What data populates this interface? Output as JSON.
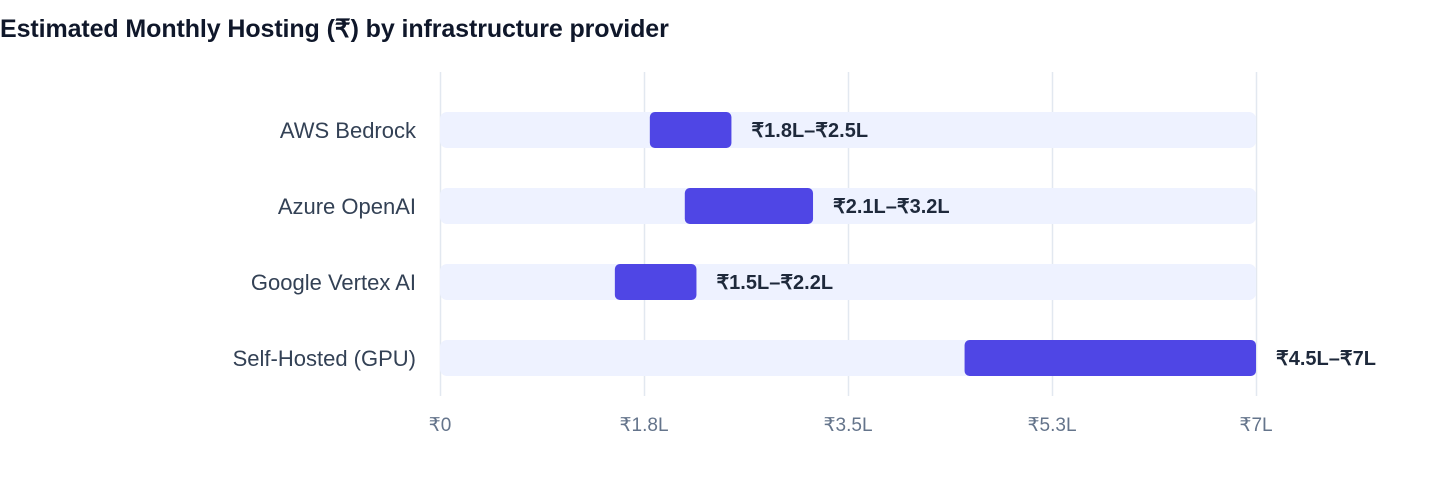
{
  "title": "Estimated Monthly Hosting (₹) by infrastructure provider",
  "colors": {
    "bar": "#4f46e5",
    "track": "#eef2ff",
    "grid": "#e2e8f0",
    "category_text": "#334155",
    "tick_text": "#64748b",
    "value_text": "#1e293b"
  },
  "chart_data": {
    "type": "bar",
    "orientation": "horizontal",
    "title": "Estimated Monthly Hosting (₹) by infrastructure provider",
    "unit": "₹ lakh",
    "xlim": [
      0,
      7
    ],
    "grid": true,
    "categories": [
      "AWS Bedrock",
      "Azure OpenAI",
      "Google Vertex AI",
      "Self-Hosted (GPU)"
    ],
    "ranges": [
      {
        "category": "AWS Bedrock",
        "low": 1.8,
        "high": 2.5,
        "label": "₹1.8L–₹2.5L"
      },
      {
        "category": "Azure OpenAI",
        "low": 2.1,
        "high": 3.2,
        "label": "₹2.1L–₹3.2L"
      },
      {
        "category": "Google Vertex AI",
        "low": 1.5,
        "high": 2.2,
        "label": "₹1.5L–₹2.2L"
      },
      {
        "category": "Self-Hosted (GPU)",
        "low": 4.5,
        "high": 7.0,
        "label": "₹4.5L–₹7L"
      }
    ],
    "ticks": [
      {
        "value": 0,
        "label": "₹0"
      },
      {
        "value": 1.75,
        "label": "₹1.8L"
      },
      {
        "value": 3.5,
        "label": "₹3.5L"
      },
      {
        "value": 5.25,
        "label": "₹5.3L"
      },
      {
        "value": 7,
        "label": "₹7L"
      }
    ]
  }
}
